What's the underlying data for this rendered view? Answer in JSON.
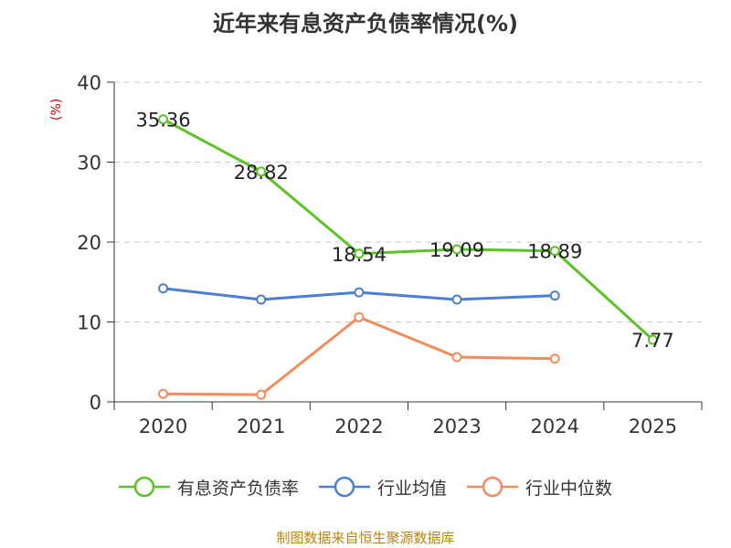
{
  "title": "近年来有息资产负债率情况(%)",
  "source": "制图数据来自恒生聚源数据库",
  "chart_data": {
    "type": "line",
    "title": "近年来有息资产负债率情况(%)",
    "ylabel": "(%)",
    "xlabel": "",
    "categories": [
      "2020",
      "2021",
      "2022",
      "2023",
      "2024",
      "2025"
    ],
    "ylim": [
      0,
      40
    ],
    "yticks": [
      "0",
      "10",
      "20",
      "30",
      "40"
    ],
    "grid": true,
    "legend_position": "bottom",
    "series": [
      {
        "name": "有息资产负债率",
        "color": "#5cc226",
        "values": [
          35.36,
          28.82,
          18.54,
          19.09,
          18.89,
          7.77
        ],
        "labels": [
          "35.36",
          "28.82",
          "18.54",
          "19.09",
          "18.89",
          "7.77"
        ]
      },
      {
        "name": "行业均值",
        "color": "#4a7fd4",
        "values": [
          14.2,
          12.8,
          13.7,
          12.8,
          13.3,
          null
        ]
      },
      {
        "name": "行业中位数",
        "color": "#f28c5a",
        "values": [
          1.0,
          0.9,
          10.6,
          5.6,
          5.4,
          null
        ]
      }
    ]
  }
}
